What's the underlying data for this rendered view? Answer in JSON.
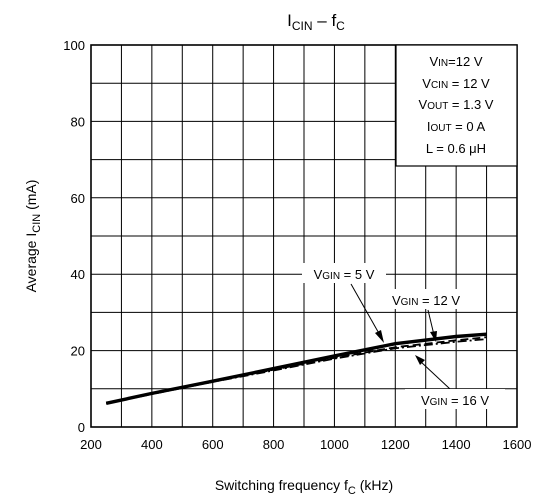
{
  "chart_data": {
    "type": "line",
    "title": {
      "main": "I",
      "sub": "CIN",
      "sep": " – f",
      "sub2": "C"
    },
    "ylabel": {
      "prefix": "Average   I",
      "sub": "CIN",
      "unit": "(mA)"
    },
    "xlabel": {
      "prefix": "Switching frequency   f",
      "sub": "C",
      "unit": "(kHz)"
    },
    "xlim": [
      200,
      1600
    ],
    "ylim": [
      0,
      100
    ],
    "x_ticks": [
      200,
      400,
      600,
      800,
      1000,
      1200,
      1400,
      1600
    ],
    "y_ticks": [
      0,
      20,
      40,
      60,
      80,
      100
    ],
    "x_tick_labels": [
      "200",
      "400",
      "600",
      "800",
      "1000",
      "1200",
      "1400",
      "1600"
    ],
    "y_tick_labels": [
      "0",
      "20",
      "40",
      "60",
      "80",
      "100"
    ],
    "grid": true,
    "series": [
      {
        "name": "VGIN = 5 V",
        "style": "solid",
        "x": [
          250,
          400,
          600,
          800,
          1000,
          1200,
          1400,
          1500
        ],
        "values": [
          6.2,
          8.8,
          12.0,
          15.3,
          18.6,
          21.8,
          23.7,
          24.3
        ]
      },
      {
        "name": "VGIN = 12 V",
        "style": "dashed",
        "x": [
          250,
          400,
          600,
          800,
          1000,
          1200,
          1400,
          1500
        ],
        "values": [
          6.2,
          8.7,
          11.9,
          15.0,
          18.1,
          20.9,
          22.7,
          23.5
        ]
      },
      {
        "name": "VGIN = 16 V",
        "style": "dashdot",
        "x": [
          250,
          400,
          600,
          800,
          1000,
          1200,
          1400,
          1500
        ],
        "values": [
          6.2,
          8.6,
          11.8,
          14.8,
          17.9,
          20.6,
          22.3,
          23.0
        ]
      }
    ],
    "conditions": [
      {
        "prefix": "V",
        "sub": "IN",
        "value": "=12 V"
      },
      {
        "prefix": "V",
        "sub": "CIN",
        "value": " = 12 V"
      },
      {
        "prefix": "V",
        "sub": "OUT",
        "value": " = 1.3 V"
      },
      {
        "prefix": "I",
        "sub": "OUT",
        "value": " = 0 A"
      },
      {
        "prefix": "L = 0.6 ",
        "sub": "",
        "value": "μH"
      }
    ],
    "annotations": [
      {
        "prefix": "V",
        "sub": "GIN",
        "value": " = 5 V"
      },
      {
        "prefix": "V",
        "sub": "GIN",
        "value": " = 12 V"
      },
      {
        "prefix": "V",
        "sub": "GIN",
        "value": " = 16 V"
      }
    ],
    "series_colors": [
      "#000000",
      "#000000",
      "#000000"
    ]
  }
}
